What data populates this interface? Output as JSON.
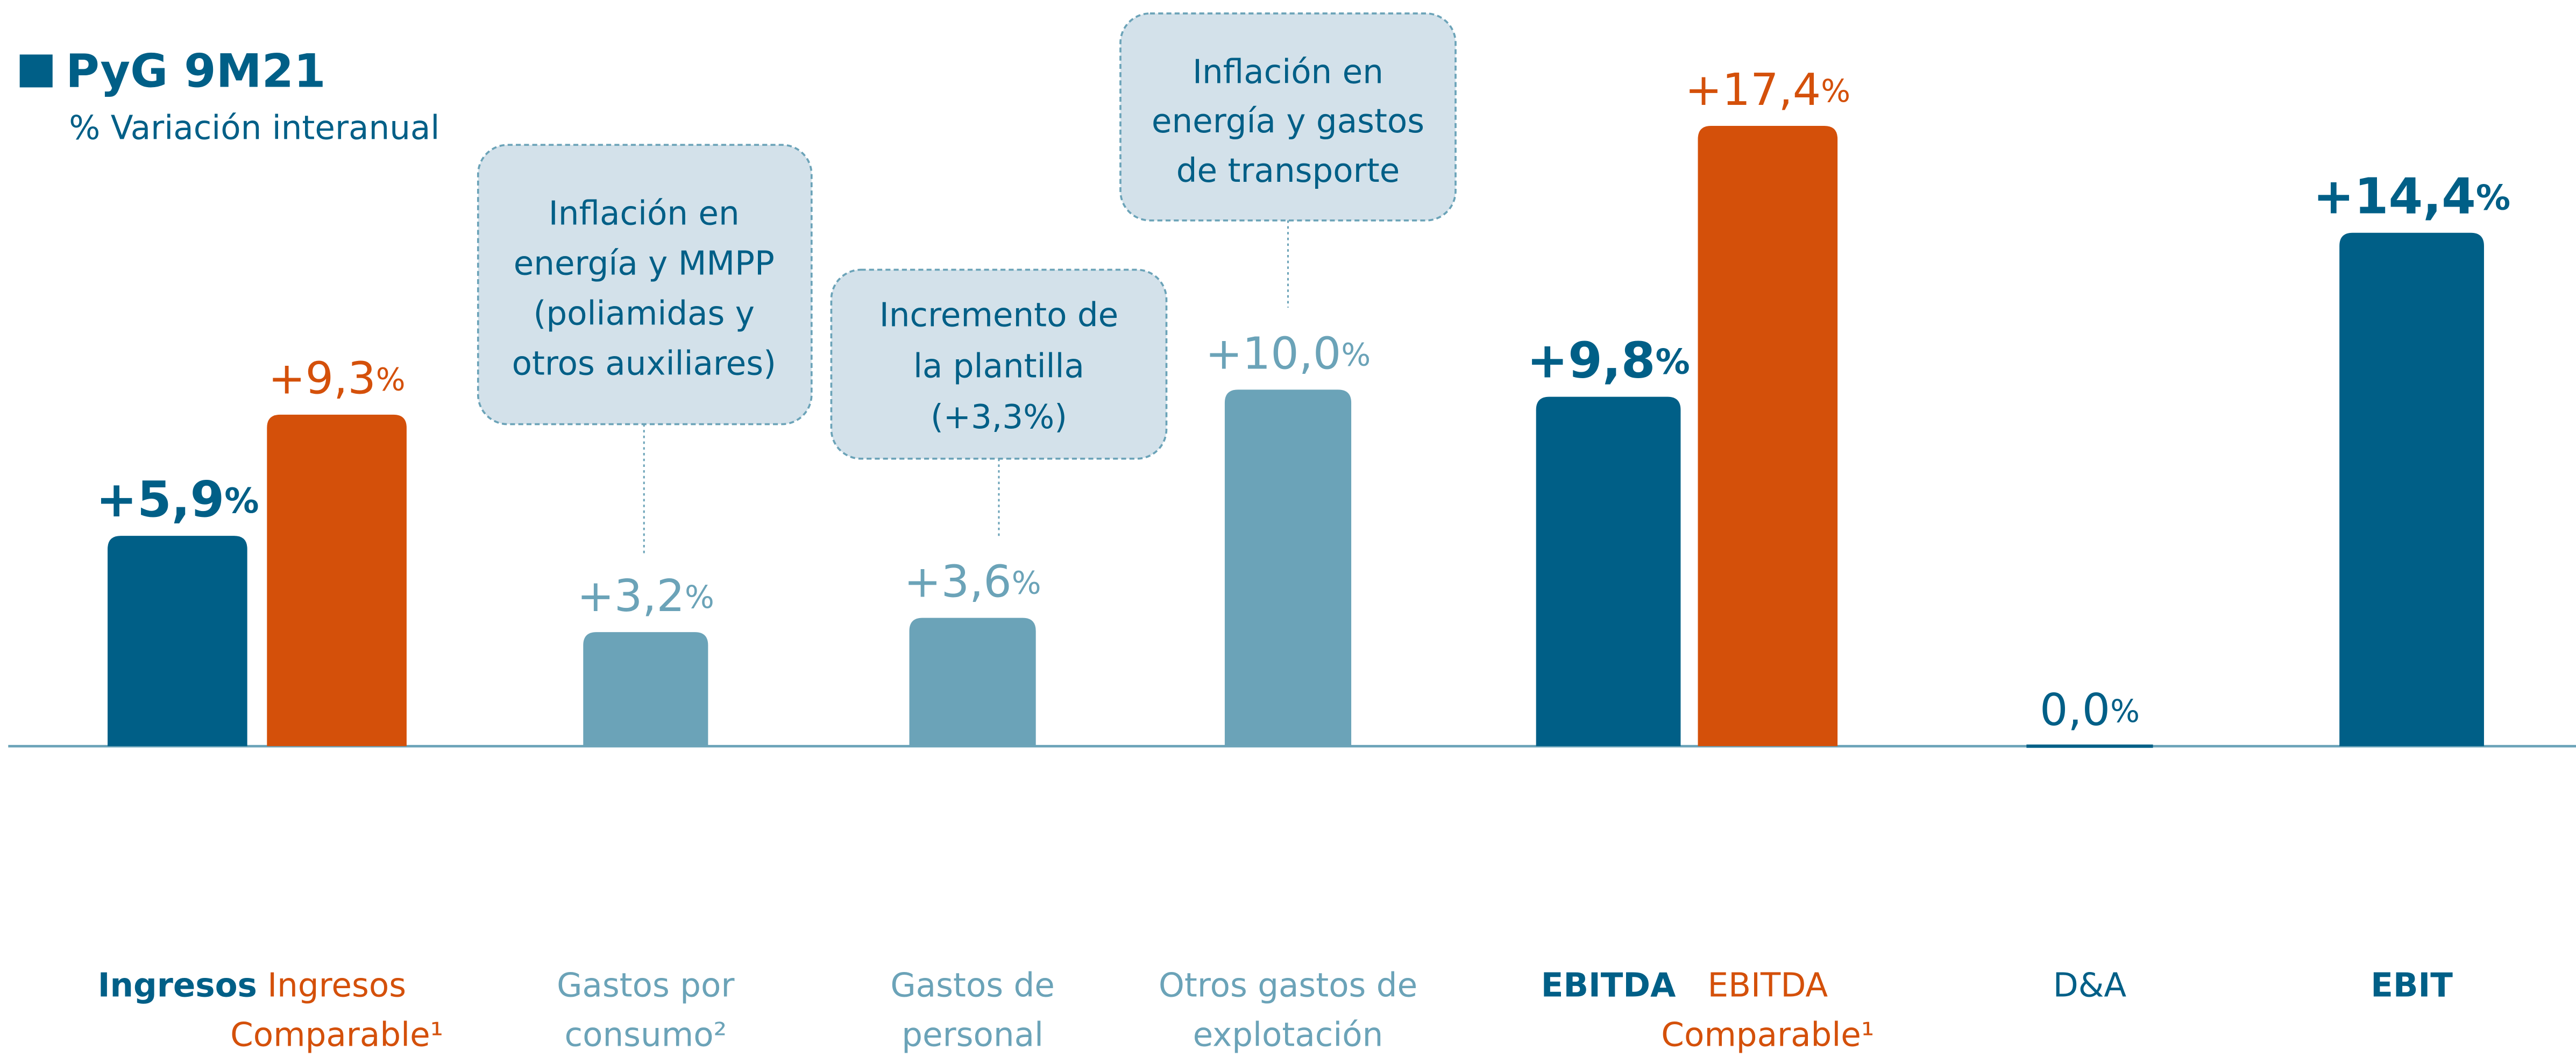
{
  "chart_data": {
    "type": "bar",
    "title": "PyG 9M21",
    "subtitle": "% Variación interanual",
    "categories": [
      [
        "Ingresos"
      ],
      [
        "Ingresos",
        "Comparable¹"
      ],
      [
        "Gastos por",
        "consumo²"
      ],
      [
        "Gastos de",
        "personal"
      ],
      [
        "Otros gastos de",
        "explotación"
      ],
      [
        "EBITDA"
      ],
      [
        "EBITDA",
        "Comparable¹"
      ],
      [
        "D&A"
      ],
      [
        "EBIT"
      ]
    ],
    "values": [
      5.9,
      9.3,
      3.2,
      3.6,
      10.0,
      9.8,
      17.4,
      0.0,
      14.4
    ],
    "value_labels": [
      "+5,9%",
      "+9,3%",
      "+3,2%",
      "+3,6%",
      "+10,0%",
      "+9,8%",
      "+17,4%",
      "0,0%",
      "+14,4%"
    ],
    "colors": [
      "#005f87",
      "#d4500a",
      "#6ba3b8",
      "#6ba3b8",
      "#6ba3b8",
      "#005f87",
      "#d4500a",
      "#005f87",
      "#005f87"
    ],
    "bold": [
      true,
      false,
      false,
      false,
      false,
      true,
      false,
      false,
      true
    ],
    "ylim": [
      0,
      20
    ],
    "annotations": [
      {
        "lines": [
          "Inflación en",
          "energía y MMPP",
          "(poliamidas y",
          "otros auxiliares)"
        ]
      },
      {
        "lines": [
          "Incremento de",
          "la plantilla",
          "(+3,3%)"
        ]
      },
      {
        "lines": [
          "Inflación en",
          "energía y gastos",
          "de transporte"
        ]
      }
    ]
  }
}
